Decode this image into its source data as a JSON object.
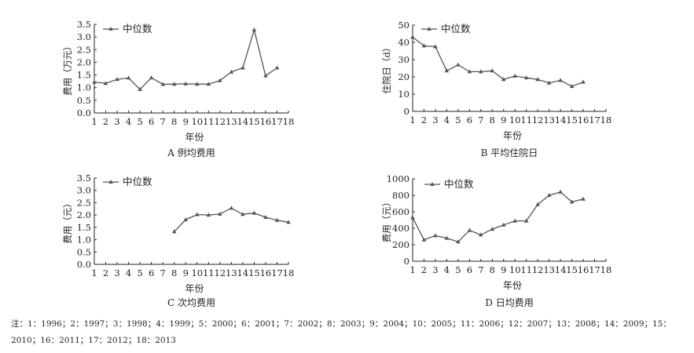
{
  "chart_data": [
    {
      "type": "line",
      "panel_caption": "A  例均费用",
      "xlabel": "年份",
      "ylabel": "费用（万元）",
      "ylim": [
        0,
        3.5
      ],
      "yticks": [
        "0.0",
        "0.5",
        "1.0",
        "1.5",
        "2.0",
        "2.5",
        "3.0",
        "3.5"
      ],
      "x_categories": [
        "1",
        "2",
        "3",
        "4",
        "5",
        "6",
        "7",
        "8",
        "9",
        "10",
        "11",
        "12",
        "13",
        "14",
        "15",
        "16",
        "17",
        "18"
      ],
      "legend": "中位数",
      "series": [
        {
          "name": "中位数",
          "x": [
            1,
            2,
            3,
            4,
            5,
            6,
            7,
            8,
            9,
            10,
            11,
            12,
            13,
            14,
            15,
            16,
            17
          ],
          "values": [
            1.22,
            1.17,
            1.33,
            1.38,
            0.93,
            1.39,
            1.13,
            1.14,
            1.15,
            1.14,
            1.14,
            1.28,
            1.62,
            1.78,
            3.28,
            1.47,
            1.78
          ]
        }
      ],
      "grid": false,
      "legend_position": "top-left"
    },
    {
      "type": "line",
      "panel_caption": "B  平均住院日",
      "xlabel": "年份",
      "ylabel": "住院日（d）",
      "ylim": [
        0,
        50
      ],
      "yticks": [
        "0",
        "10",
        "20",
        "30",
        "40",
        "50"
      ],
      "x_categories": [
        "1",
        "2",
        "3",
        "4",
        "5",
        "6",
        "7",
        "8",
        "9",
        "10",
        "11",
        "12",
        "13",
        "14",
        "15",
        "16",
        "17",
        "18"
      ],
      "legend": "中位数",
      "series": [
        {
          "name": "中位数",
          "x": [
            1,
            2,
            3,
            4,
            5,
            6,
            7,
            8,
            9,
            10,
            11,
            12,
            13,
            14,
            15,
            16
          ],
          "values": [
            43,
            38,
            37.5,
            23.5,
            27,
            23,
            23,
            23.5,
            18.5,
            20.5,
            19.5,
            18.5,
            16.5,
            18,
            14.5,
            17
          ]
        }
      ],
      "grid": false,
      "legend_position": "top-left"
    },
    {
      "type": "line",
      "panel_caption": "C  次均费用",
      "xlabel": "年份",
      "ylabel": "费用（元）",
      "ylim": [
        0,
        3.5
      ],
      "yticks": [
        "0.0",
        "0.5",
        "1.0",
        "1.5",
        "2.0",
        "2.5",
        "3.0",
        "3.5"
      ],
      "x_categories": [
        "1",
        "2",
        "3",
        "4",
        "5",
        "6",
        "7",
        "8",
        "9",
        "10",
        "11",
        "12",
        "13",
        "14",
        "15",
        "16",
        "17",
        "18"
      ],
      "legend": "中位数",
      "series": [
        {
          "name": "中位数",
          "x": [
            8,
            9,
            10,
            11,
            12,
            13,
            14,
            15,
            16,
            17,
            18
          ],
          "values": [
            1.33,
            1.81,
            2.02,
            2.0,
            2.04,
            2.28,
            2.03,
            2.08,
            1.91,
            1.79,
            1.71
          ]
        }
      ],
      "grid": false,
      "legend_position": "top-left"
    },
    {
      "type": "line",
      "panel_caption": "D  日均费用",
      "xlabel": "年份",
      "ylabel": "费用（元）",
      "ylim": [
        0,
        1000
      ],
      "yticks": [
        "0",
        "200",
        "400",
        "600",
        "800",
        "1000"
      ],
      "x_categories": [
        "1",
        "2",
        "3",
        "4",
        "5",
        "6",
        "7",
        "8",
        "9",
        "10",
        "11",
        "12",
        "13",
        "14",
        "15",
        "16",
        "17",
        "18"
      ],
      "legend": "中位数",
      "series": [
        {
          "name": "中位数",
          "x": [
            1,
            2,
            3,
            4,
            5,
            6,
            7,
            8,
            9,
            10,
            11,
            12,
            13,
            14,
            15,
            16
          ],
          "values": [
            530,
            260,
            310,
            280,
            235,
            375,
            320,
            390,
            440,
            490,
            490,
            690,
            800,
            840,
            720,
            755
          ]
        }
      ],
      "grid": false,
      "legend_position": "top-left"
    }
  ],
  "note": "注：1：1996；2：1997；3：1998；4：1999；5：2000；6：2001；7：2002；8：2003；9：2004；10：2005；11：2006；12：2007；13：2008；14：2009；15：2010；16：2011；17：2012；18：2013",
  "colors": {
    "line": "#555555",
    "axis": "#222222",
    "text": "#222222"
  }
}
